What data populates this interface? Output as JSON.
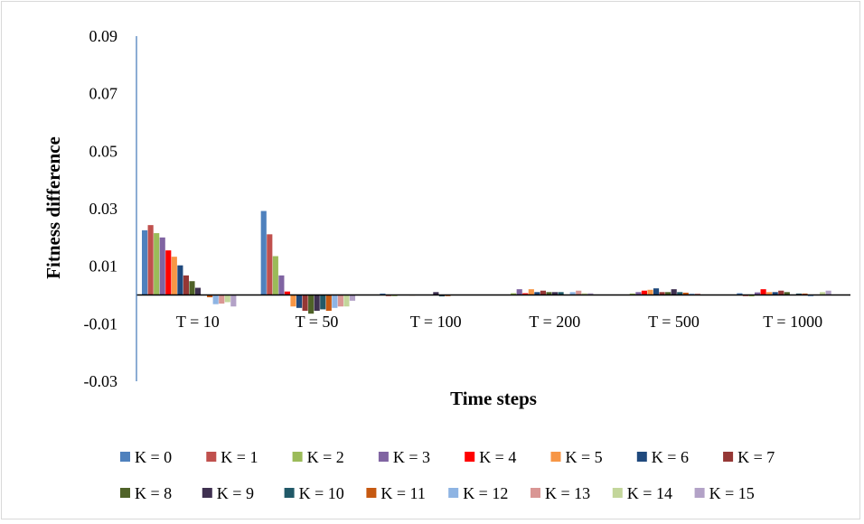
{
  "chart_data": {
    "type": "bar",
    "title": "",
    "xlabel": "Time steps",
    "ylabel": "Fitness difference",
    "ylim": [
      -0.03,
      0.09
    ],
    "yticks": [
      0.09,
      0.07,
      0.05,
      0.03,
      0.01,
      -0.01,
      -0.03
    ],
    "ytick_labels": [
      "0.09",
      "0.07",
      "0.05",
      "0.03",
      "0.01",
      "-0.01",
      "-0.03"
    ],
    "categories": [
      "T = 10",
      "T = 50",
      "T = 100",
      "T = 200",
      "T = 500",
      "T = 1000"
    ],
    "legend_position": "bottom",
    "grid": false,
    "series": [
      {
        "name": "K = 0",
        "color": "#4F81BD",
        "values": [
          0.0225,
          0.0292,
          0.0005,
          0.0,
          0.0,
          0.0006
        ]
      },
      {
        "name": "K = 1",
        "color": "#C0504D",
        "values": [
          0.0243,
          0.0211,
          -0.0004,
          0.0,
          0.0,
          -0.0004
        ]
      },
      {
        "name": "K = 2",
        "color": "#9BBB59",
        "values": [
          0.0215,
          0.0135,
          -0.0004,
          0.0006,
          0.0005,
          -0.0005
        ]
      },
      {
        "name": "K = 3",
        "color": "#8064A2",
        "values": [
          0.02,
          0.0068,
          0.0,
          0.002,
          0.001,
          0.0009
        ]
      },
      {
        "name": "K = 4",
        "color": "#FF0000",
        "values": [
          0.0155,
          0.0012,
          0.0,
          0.0006,
          0.0015,
          0.002
        ]
      },
      {
        "name": "K = 5",
        "color": "#F79646",
        "values": [
          0.0133,
          -0.004,
          -0.0002,
          0.002,
          0.0018,
          0.001
        ]
      },
      {
        "name": "K = 6",
        "color": "#1F497D",
        "values": [
          0.0103,
          -0.0045,
          0.0,
          0.001,
          0.0023,
          0.001
        ]
      },
      {
        "name": "K = 7",
        "color": "#953735",
        "values": [
          0.0068,
          -0.0055,
          0.0,
          0.0015,
          0.001,
          0.0015
        ]
      },
      {
        "name": "K = 8",
        "color": "#4F6228",
        "values": [
          0.0048,
          -0.0065,
          0.0,
          0.001,
          0.001,
          0.001
        ]
      },
      {
        "name": "K = 9",
        "color": "#3F3151",
        "values": [
          0.0025,
          -0.0055,
          0.001,
          0.001,
          0.002,
          0.0
        ]
      },
      {
        "name": "K = 10",
        "color": "#215968",
        "values": [
          0.0,
          -0.005,
          -0.0005,
          0.001,
          0.001,
          0.0005
        ]
      },
      {
        "name": "K = 11",
        "color": "#C65911",
        "values": [
          -0.0008,
          -0.0055,
          -0.0004,
          0.0,
          0.0008,
          0.0005
        ]
      },
      {
        "name": "K = 12",
        "color": "#8EB4E3",
        "values": [
          -0.0032,
          -0.0045,
          0.0,
          0.001,
          0.0005,
          -0.0005
        ]
      },
      {
        "name": "K = 13",
        "color": "#D99694",
        "values": [
          -0.003,
          -0.004,
          0.0,
          0.0015,
          0.0005,
          0.0
        ]
      },
      {
        "name": "K = 14",
        "color": "#C3D69B",
        "values": [
          -0.0025,
          -0.004,
          0.0,
          0.0006,
          0.0,
          0.001
        ]
      },
      {
        "name": "K = 15",
        "color": "#B3A2C7",
        "values": [
          -0.004,
          -0.002,
          0.0,
          0.0006,
          0.0,
          0.0015
        ]
      }
    ]
  }
}
